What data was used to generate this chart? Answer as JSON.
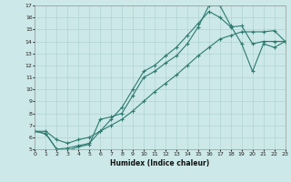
{
  "xlabel": "Humidex (Indice chaleur)",
  "ylabel": "",
  "xlim": [
    0,
    23
  ],
  "ylim": [
    5,
    17
  ],
  "xticks": [
    0,
    1,
    2,
    3,
    4,
    5,
    6,
    7,
    8,
    9,
    10,
    11,
    12,
    13,
    14,
    15,
    16,
    17,
    18,
    19,
    20,
    21,
    22,
    23
  ],
  "yticks": [
    5,
    6,
    7,
    8,
    9,
    10,
    11,
    12,
    13,
    14,
    15,
    16,
    17
  ],
  "line_color": "#2d7a70",
  "bg_color": "#cce8e8",
  "grid_color": "#aad0ce",
  "line1_x": [
    0,
    1,
    2,
    3,
    4,
    5,
    6,
    7,
    8,
    9,
    10,
    11,
    12,
    13,
    14,
    15,
    16,
    17,
    18,
    19,
    20,
    21,
    22,
    23
  ],
  "line1_y": [
    6.5,
    6.3,
    5.0,
    4.9,
    5.2,
    5.4,
    7.5,
    7.7,
    8.0,
    9.5,
    11.0,
    11.5,
    12.2,
    12.8,
    13.8,
    15.2,
    17.0,
    17.0,
    15.3,
    13.8,
    11.5,
    13.8,
    13.5,
    14.0
  ],
  "line2_x": [
    0,
    1,
    2,
    3,
    4,
    5,
    6,
    7,
    8,
    9,
    10,
    11,
    12,
    13,
    14,
    15,
    16,
    17,
    18,
    19,
    20,
    21,
    22,
    23
  ],
  "line2_y": [
    6.5,
    6.3,
    5.0,
    5.1,
    5.3,
    5.5,
    6.5,
    7.5,
    8.5,
    10.0,
    11.5,
    12.0,
    12.8,
    13.5,
    14.5,
    15.5,
    16.5,
    16.0,
    15.2,
    15.3,
    13.8,
    14.0,
    14.0,
    14.0
  ],
  "line3_x": [
    0,
    1,
    2,
    3,
    4,
    5,
    6,
    7,
    8,
    9,
    10,
    11,
    12,
    13,
    14,
    15,
    16,
    17,
    18,
    19,
    20,
    21,
    22,
    23
  ],
  "line3_y": [
    6.5,
    6.5,
    5.8,
    5.5,
    5.8,
    6.0,
    6.5,
    7.0,
    7.5,
    8.2,
    9.0,
    9.8,
    10.5,
    11.2,
    12.0,
    12.8,
    13.5,
    14.2,
    14.5,
    14.8,
    14.8,
    14.8,
    14.9,
    14.0
  ]
}
